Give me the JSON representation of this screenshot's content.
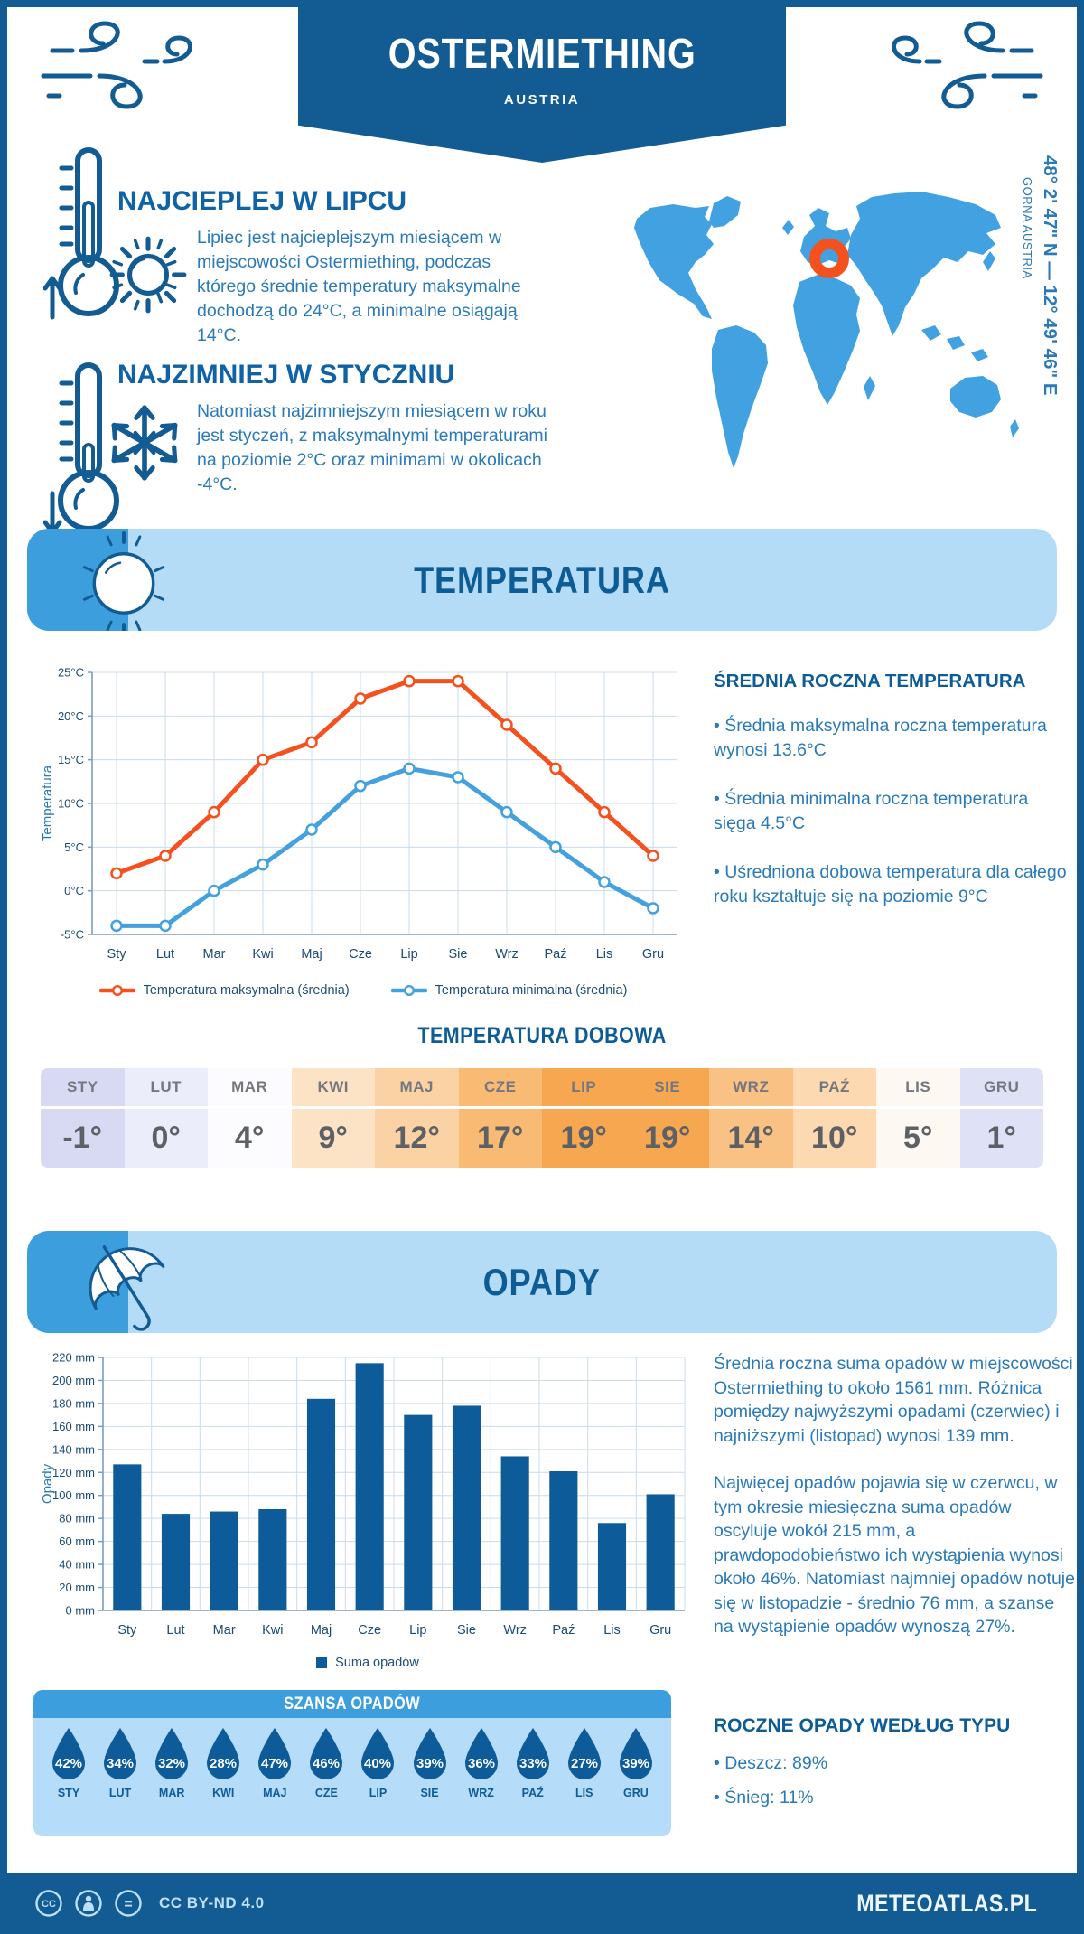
{
  "page": {
    "title": "OSTERMIETHING",
    "subtitle": "AUSTRIA",
    "coordinates": "48° 2' 47\" N — 12° 49' 46\" E",
    "region": "GÓRNA AUSTRIA",
    "footer": {
      "license": "CC BY-ND 4.0",
      "brand": "METEOATLAS.PL"
    }
  },
  "colors": {
    "primary_dark_blue": "#135b93",
    "heading_blue": "#0d5c95",
    "body_text_blue": "#2a7ab8",
    "banner_light_blue": "#b5dcf7",
    "banner_corner_blue": "#3d9edd",
    "map_land_blue": "#41a1e1",
    "marker_orange": "#f4511e",
    "max_line_orange": "#f4511e",
    "min_line_blue": "#44a1dd",
    "bar_dark_blue": "#0e5b99",
    "grid_blue": "#c9dcee"
  },
  "sections": {
    "warmest": {
      "heading": "NAJCIEPLEJ W LIPCU",
      "text": "Lipiec jest najcieplejszym miesiącem w miejscowości Ostermiething, podczas którego średnie temperatury maksymalne dochodzą do 24°C, a minimalne osiągają 14°C."
    },
    "coldest": {
      "heading": "NAJZIMNIEJ W STYCZNIU",
      "text": "Natomiast najzimniejszym miesiącem w roku jest styczeń, z maksymalnymi temperaturami na poziomie 2°C oraz minimami w okolicach -4°C."
    },
    "temperature_banner": "TEMPERATURA",
    "annual_temperature": {
      "heading": "ŚREDNIA ROCZNA TEMPERATURA",
      "bullets": [
        "• Średnia maksymalna roczna temperatura wynosi 13.6°C",
        "• Średnia minimalna roczna temperatura sięga 4.5°C",
        "• Uśredniona dobowa temperatura dla całego roku kształtuje się na poziomie 9°C"
      ]
    },
    "daily_temperature": {
      "heading": "TEMPERATURA DOBOWA",
      "months": [
        "STY",
        "LUT",
        "MAR",
        "KWI",
        "MAJ",
        "CZE",
        "LIP",
        "SIE",
        "WRZ",
        "PAŹ",
        "LIS",
        "GRU"
      ],
      "values": [
        "-1°",
        "0°",
        "4°",
        "9°",
        "12°",
        "17°",
        "19°",
        "19°",
        "14°",
        "10°",
        "5°",
        "1°"
      ],
      "colors": [
        "#d8daf3",
        "#ebedfa",
        "#fcfcfe",
        "#fce3c6",
        "#fbd2a3",
        "#f9ba74",
        "#f8a751",
        "#f8a751",
        "#fac185",
        "#fcd9b0",
        "#fdf8f2",
        "#dfe2f6"
      ]
    },
    "precipitation_banner": "OPADY",
    "precipitation_text": {
      "p1": "Średnia roczna suma opadów w miejscowości Ostermiething to około 1561 mm. Różnica pomiędzy najwyższymi opadami (czerwiec) i najniższymi (listopad) wynosi 139 mm.",
      "p2": "Najwięcej opadów pojawia się w czerwcu, w tym okresie miesięczna suma opadów oscyluje wokół 215 mm, a prawdopodobieństwo ich wystąpienia wynosi około 46%. Natomiast najmniej opadów notuje się w listopadzie - średnio 76 mm, a szanse na wystąpienie opadów wynoszą 27%."
    },
    "chance_of_precip": {
      "heading": "SZANSA OPADÓW",
      "months": [
        "STY",
        "LUT",
        "MAR",
        "KWI",
        "MAJ",
        "CZE",
        "LIP",
        "SIE",
        "WRZ",
        "PAŹ",
        "LIS",
        "GRU"
      ],
      "values": [
        "42%",
        "34%",
        "32%",
        "28%",
        "47%",
        "46%",
        "40%",
        "39%",
        "36%",
        "33%",
        "27%",
        "39%"
      ]
    },
    "precip_by_type": {
      "heading": "ROCZNE OPADY WEDŁUG TYPU",
      "bullets": [
        "• Deszcz: 89%",
        "• Śnieg: 11%"
      ]
    }
  },
  "chart_data": [
    {
      "type": "line",
      "categories": [
        "Sty",
        "Lut",
        "Mar",
        "Kwi",
        "Maj",
        "Cze",
        "Lip",
        "Sie",
        "Wrz",
        "Paź",
        "Lis",
        "Gru"
      ],
      "series": [
        {
          "name": "Temperatura maksymalna (średnia)",
          "color": "#f4511e",
          "values": [
            2,
            4,
            9,
            15,
            17,
            22,
            24,
            24,
            19,
            14,
            9,
            4
          ]
        },
        {
          "name": "Temperatura minimalna (średnia)",
          "color": "#44a1dd",
          "values": [
            -4,
            -4,
            0,
            3,
            7,
            12,
            14,
            13,
            9,
            5,
            1,
            -2
          ]
        }
      ],
      "xlabel": "",
      "ylabel": "Temperatura",
      "ylim": [
        -5,
        25
      ],
      "ytick_step": 5,
      "ytick_suffix": "°C",
      "grid": true,
      "legend_position": "bottom"
    },
    {
      "type": "bar",
      "categories": [
        "Sty",
        "Lut",
        "Mar",
        "Kwi",
        "Maj",
        "Cze",
        "Lip",
        "Sie",
        "Wrz",
        "Paź",
        "Lis",
        "Gru"
      ],
      "series": [
        {
          "name": "Suma opadów",
          "color": "#0e5b99",
          "values": [
            127,
            84,
            86,
            88,
            184,
            215,
            170,
            178,
            134,
            121,
            76,
            101
          ]
        }
      ],
      "xlabel": "",
      "ylabel": "Opady",
      "ylim": [
        0,
        220
      ],
      "ytick_step": 20,
      "ytick_suffix": " mm",
      "grid": true,
      "legend_position": "bottom"
    }
  ]
}
